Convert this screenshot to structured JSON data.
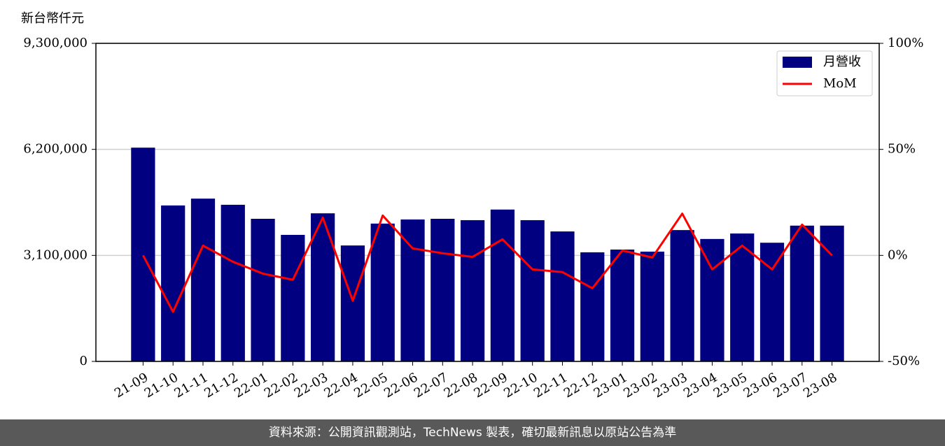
{
  "chart_data": {
    "type": "bar-line",
    "y_label": "新台幣仟元",
    "categories": [
      "21-09",
      "21-10",
      "21-11",
      "21-12",
      "22-01",
      "22-02",
      "22-03",
      "22-04",
      "22-05",
      "22-06",
      "22-07",
      "22-08",
      "22-09",
      "22-10",
      "22-11",
      "22-12",
      "23-01",
      "23-02",
      "23-03",
      "23-04",
      "23-05",
      "23-06",
      "23-07",
      "23-08"
    ],
    "series": [
      {
        "name": "月營收",
        "color": "#000080",
        "type": "bar",
        "values": [
          6250000,
          4560000,
          4760000,
          4580000,
          4170000,
          3700000,
          4330000,
          3390000,
          4030000,
          4150000,
          4170000,
          4130000,
          4440000,
          4130000,
          3800000,
          3190000,
          3270000,
          3210000,
          3840000,
          3580000,
          3740000,
          3470000,
          3970000,
          3970000
        ]
      },
      {
        "name": "MoM",
        "color": "#ff0000",
        "type": "line",
        "axis": "y2",
        "values": [
          0,
          -26.6,
          4.6,
          -3,
          -8.6,
          -11.5,
          17.8,
          -21.4,
          18.8,
          3.3,
          1,
          -0.7,
          7.6,
          -6.6,
          -7.9,
          -15.5,
          2.3,
          -1,
          19.7,
          -6.6,
          4.6,
          -6.6,
          14.5,
          0
        ]
      }
    ],
    "ylim": [
      0,
      9300000
    ],
    "yticks": [
      {
        "value": 0,
        "label": "0"
      },
      {
        "value": 3100000,
        "label": "3,100,000"
      },
      {
        "value": 6200000,
        "label": "6,200,000"
      },
      {
        "value": 9300000,
        "label": "9,300,000"
      }
    ],
    "y2lim": [
      -50,
      100
    ],
    "y2ticks": [
      {
        "value": -50,
        "label": "-50%"
      },
      {
        "value": 0,
        "label": "0%"
      },
      {
        "value": 50,
        "label": "50%"
      },
      {
        "value": 100,
        "label": "100%"
      }
    ],
    "grid": true,
    "legend": "upper right"
  },
  "footer": "資料來源：公開資訊觀測站，TechNews 製表，確切最新訊息以原站公告為準"
}
